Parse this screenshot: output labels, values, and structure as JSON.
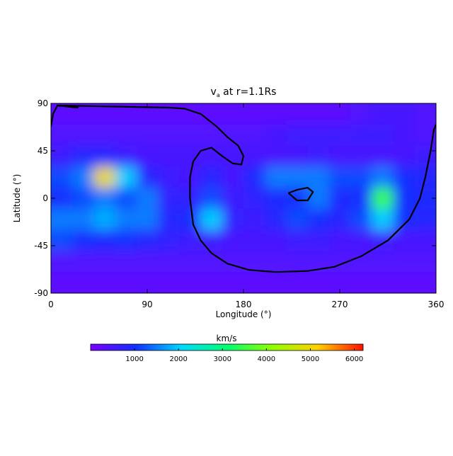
{
  "chart_data": {
    "type": "heatmap",
    "title": [
      "v",
      "a",
      " at r=1.1Rs"
    ],
    "xlabel": "Longitude (°)",
    "ylabel": "Latitude (°)",
    "xlim": [
      0,
      360
    ],
    "xticks": [
      0,
      90,
      180,
      270,
      360
    ],
    "ylim": [
      -90,
      90
    ],
    "yticks": [
      -90,
      -45,
      0,
      45,
      90
    ],
    "x": [
      10,
      30,
      50,
      70,
      90,
      110,
      130,
      150,
      170,
      190,
      210,
      230,
      250,
      270,
      290,
      310,
      330,
      350
    ],
    "y": [
      80,
      60,
      40,
      20,
      0,
      -20,
      -40,
      -60,
      -80
    ],
    "z": [
      [
        300,
        300,
        300,
        300,
        300,
        300,
        300,
        300,
        300,
        300,
        300,
        300,
        300,
        300,
        400,
        500,
        500,
        400
      ],
      [
        400,
        400,
        400,
        400,
        400,
        400,
        400,
        400,
        400,
        400,
        500,
        600,
        600,
        600,
        600,
        600,
        500,
        400
      ],
      [
        600,
        800,
        800,
        600,
        500,
        500,
        500,
        500,
        500,
        500,
        500,
        500,
        600,
        500,
        500,
        500,
        500,
        600
      ],
      [
        1200,
        1500,
        5000,
        2000,
        800,
        600,
        500,
        800,
        500,
        900,
        1500,
        1500,
        1500,
        1200,
        1200,
        1500,
        1000,
        800
      ],
      [
        1000,
        1200,
        1500,
        1200,
        1500,
        700,
        700,
        1200,
        600,
        700,
        900,
        1000,
        1500,
        900,
        1000,
        3500,
        1000,
        900
      ],
      [
        1500,
        1500,
        1800,
        1500,
        1500,
        800,
        1000,
        2000,
        700,
        600,
        800,
        1200,
        1000,
        800,
        1200,
        2000,
        1000,
        800
      ],
      [
        1200,
        1000,
        900,
        1000,
        800,
        700,
        600,
        600,
        500,
        500,
        500,
        600,
        600,
        500,
        500,
        600,
        500,
        500
      ],
      [
        400,
        400,
        400,
        400,
        400,
        400,
        400,
        400,
        400,
        400,
        400,
        400,
        400,
        400,
        400,
        400,
        400,
        400
      ],
      [
        300,
        300,
        300,
        300,
        300,
        300,
        300,
        300,
        300,
        300,
        300,
        300,
        300,
        300,
        300,
        300,
        300,
        300
      ]
    ],
    "contour": {
      "color": "#000000",
      "x": [
        0,
        2,
        6,
        25,
        8,
        60,
        110,
        125,
        140,
        155,
        165,
        175,
        180,
        178,
        170,
        160,
        150,
        140,
        133,
        130,
        130,
        133,
        140,
        150,
        165,
        185,
        210,
        240,
        265,
        290,
        315,
        335,
        345,
        350,
        355,
        358,
        360,
        null,
        222,
        230,
        240,
        245,
        240,
        230,
        222
      ],
      "y": [
        68,
        80,
        88,
        86,
        88,
        87,
        86,
        85,
        80,
        68,
        58,
        50,
        40,
        32,
        33,
        40,
        48,
        45,
        35,
        20,
        0,
        -25,
        -40,
        -52,
        -62,
        -68,
        -70,
        -69,
        -65,
        -55,
        -40,
        -20,
        0,
        20,
        45,
        65,
        70,
        null,
        5,
        8,
        10,
        6,
        -2,
        -2,
        5
      ]
    },
    "colorbar": {
      "label": "km/s",
      "clim": [
        0,
        6200
      ],
      "ticks": [
        1000,
        2000,
        3000,
        4000,
        5000,
        6000
      ],
      "colormap": [
        "#7a00ff",
        "#1030ff",
        "#00d8ff",
        "#00ff70",
        "#90ff00",
        "#ffd000",
        "#ff1000"
      ]
    }
  }
}
